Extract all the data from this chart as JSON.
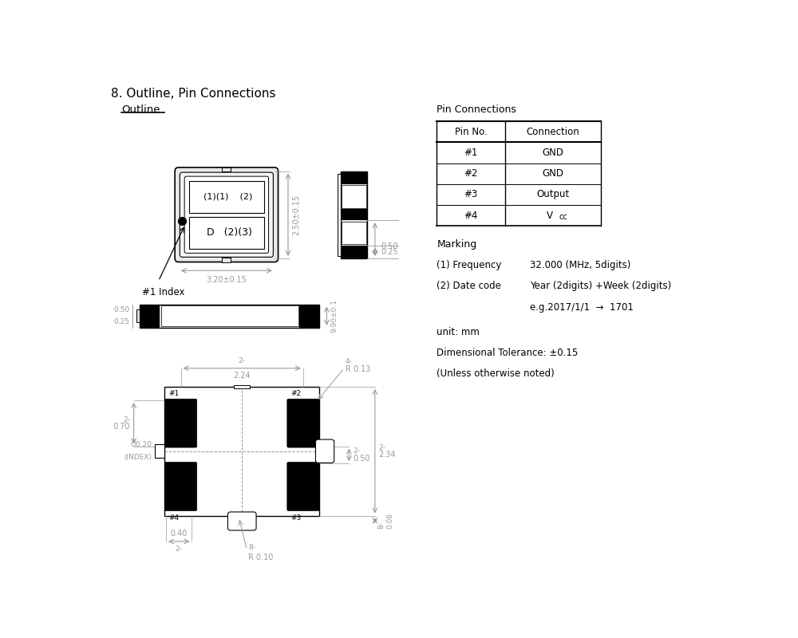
{
  "title": "8. Outline, Pin Connections",
  "outline_label": "Outline",
  "pin_connections_title": "Pin Connections",
  "pin_table": {
    "headers": [
      "Pin No.",
      "Connection"
    ],
    "rows": [
      [
        "#1",
        "GND"
      ],
      [
        "#2",
        "GND"
      ],
      [
        "#3",
        "Output"
      ],
      [
        "#4",
        "Vcc"
      ]
    ]
  },
  "marking_title": "Marking",
  "marking_items": [
    [
      "(1) Frequency",
      "32.000 (MHz, 5digits)"
    ],
    [
      "(2) Date code",
      "Year (2digits) +Week (2digits)"
    ],
    [
      "",
      "e.g.2017/1/1  →  1701"
    ]
  ],
  "unit_text": "unit: mm",
  "tolerance_text": "Dimensional Tolerance: ±0.15",
  "unless_text": "(Unless otherwise noted)",
  "bg_color": "#ffffff",
  "line_color": "#000000",
  "dim_color": "#999999",
  "text_color": "#000000"
}
